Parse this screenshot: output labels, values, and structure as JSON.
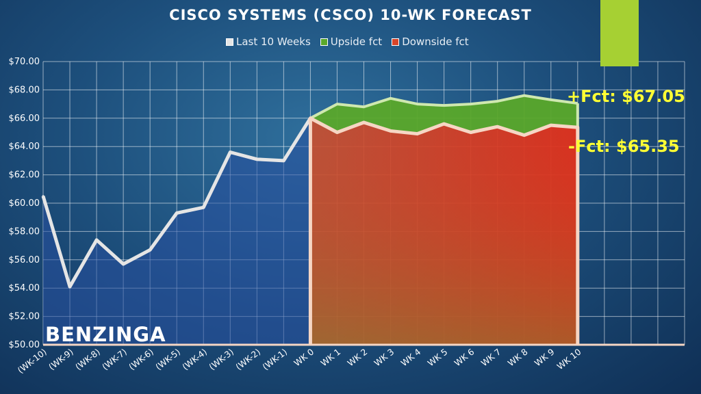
{
  "chart_data": {
    "type": "area",
    "title": "CISCO SYSTEMS (CSCO) 10-WK FORECAST",
    "categories": [
      "(WK-10)",
      "(WK-9)",
      "(WK-8)",
      "(WK-7)",
      "(WK-6)",
      "(WK-5)",
      "(WK-4)",
      "(WK-3)",
      "(WK-2)",
      "(WK-1)",
      "WK 0",
      "WK 1",
      "WK 2",
      "WK 3",
      "WK 4",
      "WK 5",
      "WK 6",
      "WK 7",
      "WK 8",
      "WK 9",
      "WK 10"
    ],
    "series": [
      {
        "name": "Last 10 Weeks",
        "values": [
          60.5,
          54.1,
          57.4,
          55.7,
          56.7,
          59.3,
          59.7,
          63.6,
          63.1,
          63.0,
          66.0,
          null,
          null,
          null,
          null,
          null,
          null,
          null,
          null,
          null,
          null
        ]
      },
      {
        "name": "Upside fct",
        "values": [
          null,
          null,
          null,
          null,
          null,
          null,
          null,
          null,
          null,
          null,
          66.0,
          67.0,
          66.8,
          67.4,
          67.0,
          66.9,
          67.0,
          67.2,
          67.6,
          67.3,
          67.05
        ]
      },
      {
        "name": "Downside fct",
        "values": [
          null,
          null,
          null,
          null,
          null,
          null,
          null,
          null,
          null,
          null,
          66.0,
          65.0,
          65.7,
          65.1,
          64.9,
          65.6,
          65.0,
          65.4,
          64.8,
          65.5,
          65.35
        ]
      }
    ],
    "ylim": [
      50,
      70
    ],
    "yticks": [
      "$50.00",
      "$52.00",
      "$54.00",
      "$56.00",
      "$58.00",
      "$60.00",
      "$62.00",
      "$64.00",
      "$66.00",
      "$68.00",
      "$70.00"
    ],
    "xlabel": "",
    "ylabel": "",
    "grid": true,
    "legend_position": "top",
    "colors": {
      "history": "#e5e5e5",
      "upside": "#5aa82a",
      "downside": "#d8452a",
      "outline": "#f6d6c4",
      "annotation": "#ffff33",
      "badge": "#a6d033"
    }
  },
  "annotations": {
    "upside": "+Fct: $67.05",
    "downside": "-Fct: $65.35"
  },
  "logo_text": "BENZINGA"
}
